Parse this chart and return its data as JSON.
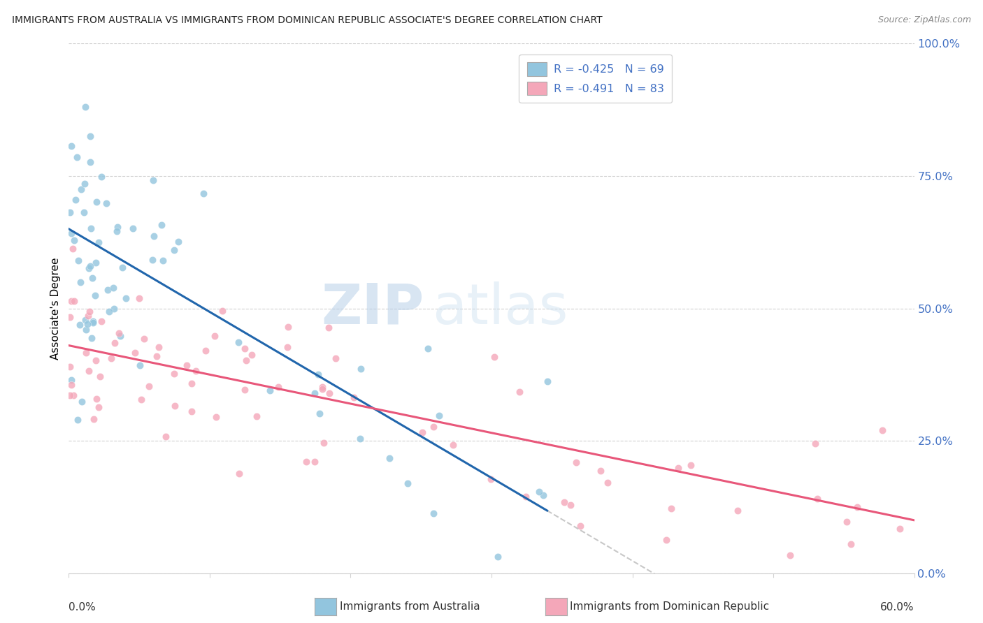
{
  "title": "IMMIGRANTS FROM AUSTRALIA VS IMMIGRANTS FROM DOMINICAN REPUBLIC ASSOCIATE'S DEGREE CORRELATION CHART",
  "source": "Source: ZipAtlas.com",
  "ylabel": "Associate's Degree",
  "right_yticklabels": [
    "0.0%",
    "25.0%",
    "50.0%",
    "75.0%",
    "100.0%"
  ],
  "right_ytick_vals": [
    0.0,
    0.25,
    0.5,
    0.75,
    1.0
  ],
  "legend_label1": "R = -0.425   N = 69",
  "legend_label2": "R = -0.491   N = 83",
  "legend_bottom_label1": "Immigrants from Australia",
  "legend_bottom_label2": "Immigrants from Dominican Republic",
  "color_australia": "#92c5de",
  "color_dominican": "#f4a7b9",
  "color_trend_australia": "#2166ac",
  "color_trend_dominican": "#e8577a",
  "color_dashed": "#c8c8c8",
  "watermark_zip": "ZIP",
  "watermark_atlas": "atlas",
  "xlim": [
    0.0,
    0.6
  ],
  "ylim": [
    0.0,
    1.0
  ],
  "trend_aus_x0": 0.0,
  "trend_aus_y0": 0.65,
  "trend_aus_x1": 0.3,
  "trend_aus_y1": 0.18,
  "trend_dom_x0": 0.0,
  "trend_dom_y0": 0.43,
  "trend_dom_x1": 0.6,
  "trend_dom_y1": 0.1
}
